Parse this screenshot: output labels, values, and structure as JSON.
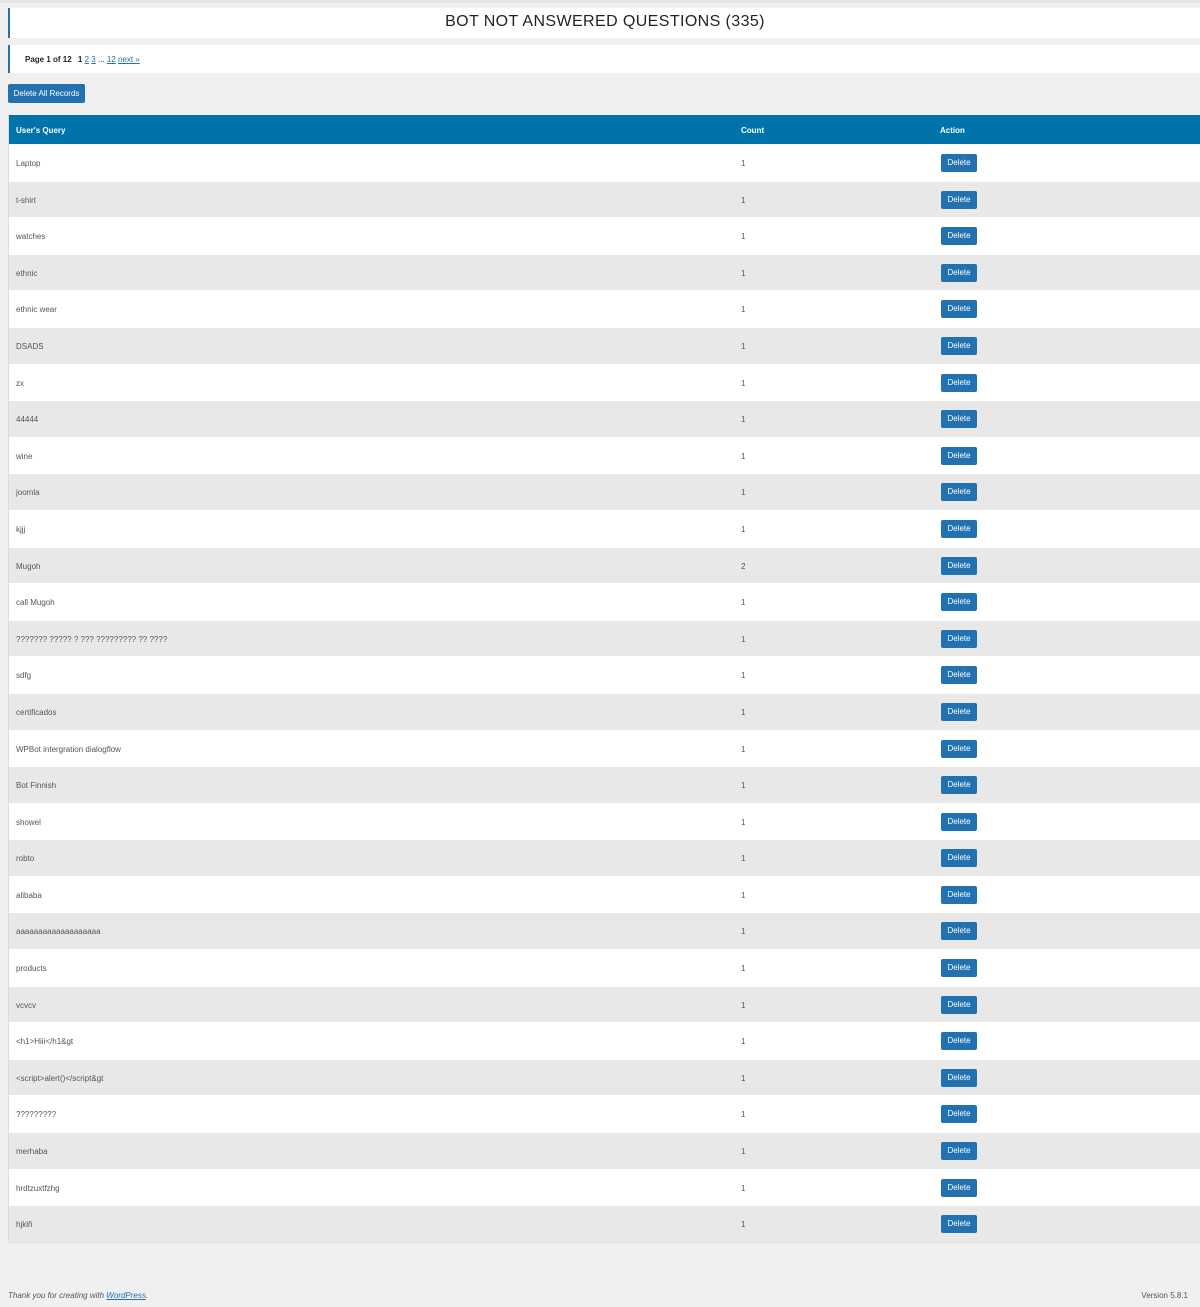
{
  "page_title": "BOT NOT ANSWERED QUESTIONS (335)",
  "pagination": {
    "page_info": "Page 1 of 12",
    "current": "1",
    "links": [
      "2",
      "3"
    ],
    "ellipsis": "...",
    "last": "12",
    "next": "next »"
  },
  "delete_all_label": "Delete All Records",
  "table": {
    "headers": {
      "query": "User's Query",
      "count": "Count",
      "action": "Action"
    },
    "rows": [
      {
        "query": "Laptop",
        "count": "1"
      },
      {
        "query": "t-shirt",
        "count": "1"
      },
      {
        "query": "watches",
        "count": "1"
      },
      {
        "query": "ethnic",
        "count": "1"
      },
      {
        "query": "ethnic wear",
        "count": "1"
      },
      {
        "query": "DSADS",
        "count": "1"
      },
      {
        "query": "zx",
        "count": "1"
      },
      {
        "query": "44444",
        "count": "1"
      },
      {
        "query": "wine",
        "count": "1"
      },
      {
        "query": "joomla",
        "count": "1"
      },
      {
        "query": "kjjj",
        "count": "1"
      },
      {
        "query": "Mugoh",
        "count": "2"
      },
      {
        "query": "call Mugoh",
        "count": "1"
      },
      {
        "query": "??????? ????? ? ??? ????????? ?? ????",
        "count": "1"
      },
      {
        "query": "sdfg",
        "count": "1"
      },
      {
        "query": "certificados",
        "count": "1"
      },
      {
        "query": "WPBot intergration dialogflow",
        "count": "1"
      },
      {
        "query": "Bot Finnish",
        "count": "1"
      },
      {
        "query": "showel",
        "count": "1"
      },
      {
        "query": "robto",
        "count": "1"
      },
      {
        "query": "alibaba",
        "count": "1"
      },
      {
        "query": "aaaaaaaaaaaaaaaaaaa",
        "count": "1"
      },
      {
        "query": "products",
        "count": "1"
      },
      {
        "query": "vcvcv",
        "count": "1"
      },
      {
        "query": "<h1>Hiii</h1&gt",
        "count": "1"
      },
      {
        "query": "<script>alert()</script&gt",
        "count": "1"
      },
      {
        "query": "?????????",
        "count": "1"
      },
      {
        "query": "merhaba",
        "count": "1"
      },
      {
        "query": "hrdtzuxtfzhg",
        "count": "1"
      },
      {
        "query": "hjklň",
        "count": "1"
      }
    ],
    "delete_label": "Delete"
  },
  "footer": {
    "thanks_prefix": "Thank you for creating with ",
    "wordpress_link": "WordPress",
    "thanks_suffix": ".",
    "version": "Version 5.8.1"
  },
  "colors": {
    "accent": "#2271b1",
    "header_bg": "#0073aa",
    "page_bg": "#f0f0f1"
  }
}
